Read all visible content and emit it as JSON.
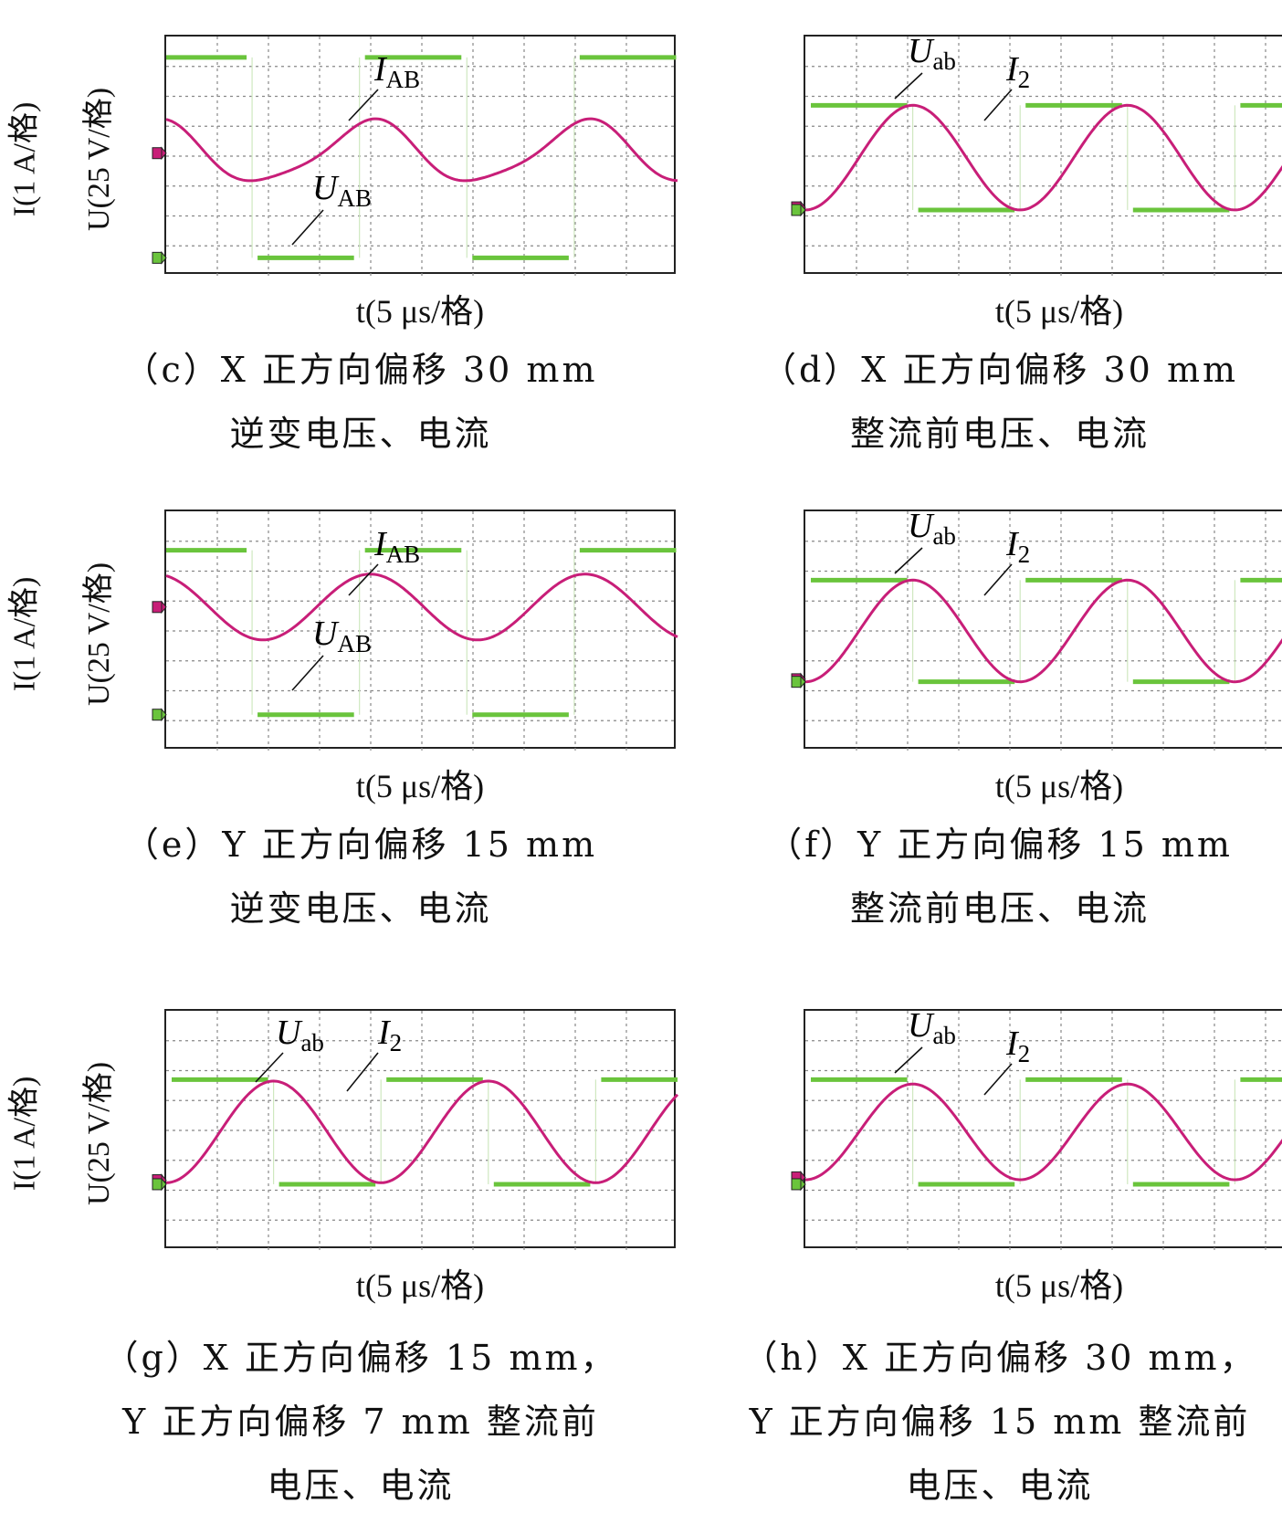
{
  "colors": {
    "voltage": "#6ac43c",
    "current": "#c81e78",
    "grid": "#888888"
  },
  "axes": {
    "y_current": "I(1 A/格)",
    "y_voltage": "U(25 V/格)",
    "x_time": "t(5 μs/格)"
  },
  "chart_data": [
    {
      "id": "c",
      "type": "line",
      "caption_lines": [
        "（c）X 正方向偏移 30 mm",
        "逆变电压、电流"
      ],
      "ylabels_shown": true,
      "voltage_label": {
        "main": "U",
        "sub": "AB"
      },
      "current_label": {
        "main": "I",
        "sub": "AB"
      },
      "x_divisions": 10,
      "y_divisions": 8,
      "voltage": {
        "name": "UAB",
        "high_div": 7.3,
        "low_div": 0.6,
        "period_div": 4.2,
        "duty": 0.5,
        "start_phase": 0.1
      },
      "current": {
        "name": "IAB",
        "center_div": 4.1,
        "amplitude_div": 1.0,
        "period_div": 4.2,
        "phase_shift": 0.35,
        "distorted": true
      }
    },
    {
      "id": "d",
      "type": "line",
      "caption_lines": [
        "（d）X 正方向偏移 30 mm",
        "整流前电压、电流"
      ],
      "ylabels_shown": false,
      "voltage_label": {
        "main": "U",
        "sub": "ab"
      },
      "current_label": {
        "main": "I",
        "sub": "2"
      },
      "x_divisions": 10,
      "y_divisions": 8,
      "voltage": {
        "name": "Uab",
        "high_div": 5.7,
        "low_div": 2.2,
        "period_div": 4.2,
        "duty": 0.5,
        "start_phase": 0.0
      },
      "current": {
        "name": "I2",
        "center_div": 3.95,
        "amplitude_div": 1.75,
        "period_div": 4.2,
        "phase_shift": 0.0,
        "distorted": false
      }
    },
    {
      "id": "e",
      "type": "line",
      "caption_lines": [
        "（e）Y 正方向偏移 15 mm",
        "逆变电压、电流"
      ],
      "ylabels_shown": true,
      "voltage_label": {
        "main": "U",
        "sub": "AB"
      },
      "current_label": {
        "main": "I",
        "sub": "AB"
      },
      "x_divisions": 10,
      "y_divisions": 8,
      "voltage": {
        "name": "UAB",
        "high_div": 6.7,
        "low_div": 1.2,
        "period_div": 4.2,
        "duty": 0.5,
        "start_phase": 0.1
      },
      "current": {
        "name": "IAB",
        "center_div": 4.8,
        "amplitude_div": 1.1,
        "period_div": 4.2,
        "phase_shift": 0.35,
        "distorted": false
      }
    },
    {
      "id": "f",
      "type": "line",
      "caption_lines": [
        "（f）Y 正方向偏移 15 mm",
        "整流前电压、电流"
      ],
      "ylabels_shown": false,
      "voltage_label": {
        "main": "U",
        "sub": "ab"
      },
      "current_label": {
        "main": "I",
        "sub": "2"
      },
      "x_divisions": 10,
      "y_divisions": 8,
      "voltage": {
        "name": "Uab",
        "high_div": 5.7,
        "low_div": 2.3,
        "period_div": 4.2,
        "duty": 0.5,
        "start_phase": 0.0
      },
      "current": {
        "name": "I2",
        "center_div": 4.0,
        "amplitude_div": 1.7,
        "period_div": 4.2,
        "phase_shift": 0.0,
        "distorted": false
      }
    },
    {
      "id": "g",
      "type": "line",
      "caption_lines": [
        "（g）X 正方向偏移 15 mm，",
        "Y 正方向偏移 7 mm 整流前",
        "电压、电流"
      ],
      "ylabels_shown": true,
      "voltage_label": {
        "main": "U",
        "sub": "ab"
      },
      "current_label": {
        "main": "I",
        "sub": "2"
      },
      "x_divisions": 10,
      "y_divisions": 8,
      "voltage": {
        "name": "Uab",
        "high_div": 5.7,
        "low_div": 2.2,
        "period_div": 4.2,
        "duty": 0.5,
        "start_phase": 0.0
      },
      "current": {
        "name": "I2",
        "center_div": 3.95,
        "amplitude_div": 1.7,
        "period_div": 4.2,
        "phase_shift": 0.0,
        "distorted": false
      }
    },
    {
      "id": "h",
      "type": "line",
      "caption_lines": [
        "（h）X 正方向偏移 30 mm，",
        "Y 正方向偏移 15 mm 整流前",
        "电压、电流"
      ],
      "ylabels_shown": false,
      "voltage_label": {
        "main": "U",
        "sub": "ab"
      },
      "current_label": {
        "main": "I",
        "sub": "2"
      },
      "x_divisions": 10,
      "y_divisions": 8,
      "voltage": {
        "name": "Uab",
        "high_div": 5.7,
        "low_div": 2.2,
        "period_div": 4.2,
        "duty": 0.5,
        "start_phase": 0.0
      },
      "current": {
        "name": "I2",
        "center_div": 3.95,
        "amplitude_div": 1.6,
        "period_div": 4.2,
        "phase_shift": 0.0,
        "distorted": false
      }
    }
  ]
}
